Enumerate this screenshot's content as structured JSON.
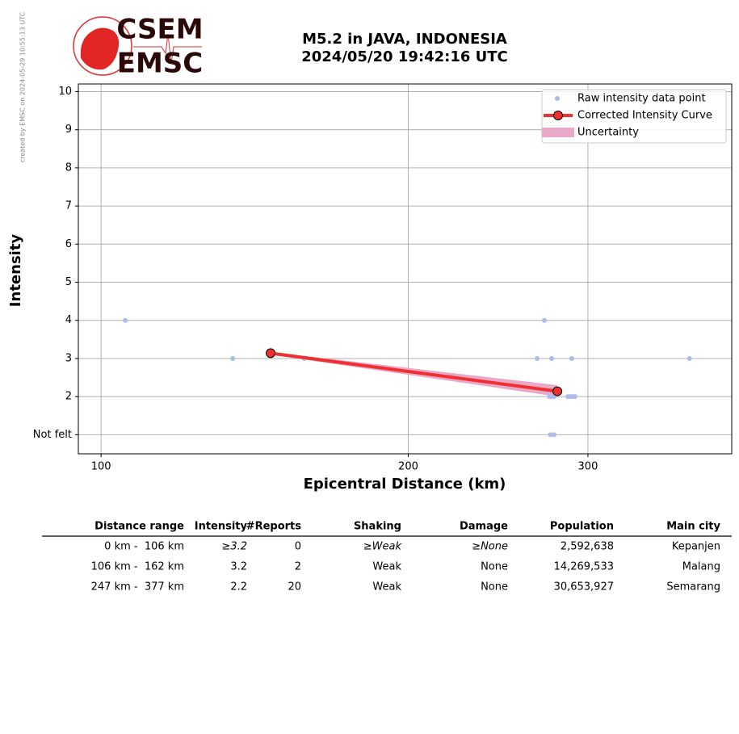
{
  "credit": "created by EMSC on 2024-05-29 10:55:13 UTC",
  "logo": {
    "top": "CSEM",
    "bottom": "EMSC"
  },
  "chart_data": {
    "type": "scatter",
    "title": "M5.2 in JAVA, INDONESIA",
    "subtitle": "2024/05/20 19:42:16 UTC",
    "x_label": "Epicentral Distance (km)",
    "y_label": "Intensity",
    "x_scale": "log",
    "xlim": [
      95,
      415
    ],
    "xticks": [
      100,
      200,
      300
    ],
    "ylim": [
      0.5,
      10.2
    ],
    "yticks": [
      {
        "value": 1,
        "label": "Not felt"
      },
      2,
      3,
      4,
      5,
      6,
      7,
      8,
      9,
      10
    ],
    "grid": true,
    "legend": "upper right",
    "series": [
      {
        "name": "Raw intensity data point",
        "type": "scatter",
        "color": "#aebde8",
        "x": [
          105.6,
          134.6,
          158.1,
          267.5,
          271.9,
          276.4,
          289.2,
          377.3,
          275.0,
          276.4,
          277.9,
          286.7,
          288.3,
          289.9,
          291.4,
          275.6,
          277.9
        ],
        "values": [
          4,
          3,
          3,
          3,
          4,
          3,
          3,
          3,
          2,
          2,
          2,
          2,
          2,
          2,
          2,
          1,
          1
        ]
      },
      {
        "name": "Corrected Intensity Curve",
        "type": "line",
        "color": "#f03030",
        "x": [
          146.6,
          280.0
        ],
        "values": [
          3.14,
          2.14
        ]
      },
      {
        "name": "Uncertainty",
        "type": "band",
        "color": "#e8a8c8",
        "x": [
          146.6,
          280.0
        ],
        "lower": [
          3.1,
          2.0
        ],
        "upper": [
          3.17,
          2.3
        ]
      }
    ]
  },
  "table": {
    "header": [
      "Distance range",
      "Intensity",
      "#Reports",
      "Shaking",
      "Damage",
      "Population",
      "Main city"
    ],
    "rows": [
      [
        "0 km -  106 km",
        "≥3.2",
        "0",
        "≥Weak",
        "≥None",
        "2,592,638",
        "Kepanjen"
      ],
      [
        "106 km -  162 km",
        "3.2",
        "2",
        "Weak",
        "None",
        "14,269,533",
        "Malang"
      ],
      [
        "247 km -  377 km",
        "2.2",
        "20",
        "Weak",
        "None",
        "30,653,927",
        "Semarang"
      ]
    ]
  }
}
